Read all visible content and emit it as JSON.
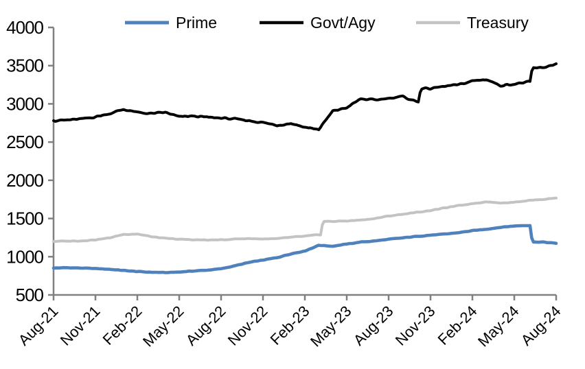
{
  "chart": {
    "background_color": "#ffffff",
    "axis_color": "#808080",
    "text_color": "#000000",
    "legend": [
      {
        "label": "Prime",
        "color": "#4F81BD"
      },
      {
        "label": "Govt/Agy",
        "color": "#000000"
      },
      {
        "label": "Treasury",
        "color": "#C3C3C3"
      }
    ]
  },
  "chart_data": {
    "type": "line",
    "title": "",
    "xlabel": "",
    "ylabel": "",
    "grid": false,
    "legend_position": "top",
    "ylim": [
      500,
      4000
    ],
    "y_ticks": [
      "500",
      "1000",
      "1500",
      "2000",
      "2500",
      "3000",
      "3500",
      "4000"
    ],
    "x_tick_labels": [
      "Aug-21",
      "Nov-21",
      "Feb-22",
      "May-22",
      "Aug-22",
      "Nov-22",
      "Feb-23",
      "May-23",
      "Aug-23",
      "Nov-23",
      "Feb-24",
      "May-24",
      "Aug-24"
    ],
    "x_monthly": [
      "Aug-21",
      "Sep-21",
      "Oct-21",
      "Nov-21",
      "Dec-21",
      "Jan-22",
      "Feb-22",
      "Mar-22",
      "Apr-22",
      "May-22",
      "Jun-22",
      "Jul-22",
      "Aug-22",
      "Sep-22",
      "Oct-22",
      "Nov-22",
      "Dec-22",
      "Jan-23",
      "Feb-23",
      "Mar-23",
      "Apr-23",
      "May-23",
      "Jun-23",
      "Jul-23",
      "Aug-23",
      "Sep-23",
      "Oct-23",
      "Nov-23",
      "Dec-23",
      "Jan-24",
      "Feb-24",
      "Mar-24",
      "Apr-24",
      "May-24",
      "Jun-24",
      "Jul-24",
      "Aug-24"
    ],
    "series": [
      {
        "name": "Prime",
        "color": "#4F81BD",
        "values": [
          852,
          856,
          851,
          845,
          836,
          820,
          806,
          797,
          792,
          800,
          813,
          824,
          842,
          882,
          925,
          956,
          988,
          1038,
          1075,
          1150,
          1138,
          1165,
          1192,
          1206,
          1228,
          1246,
          1266,
          1282,
          1295,
          1315,
          1340,
          1360,
          1385,
          1402,
          1410,
          1192,
          1175
        ],
        "abrupt_shift_after": [
          "Jun-24"
        ]
      },
      {
        "name": "Govt/Agy",
        "color": "#000000",
        "values": [
          2780,
          2788,
          2802,
          2830,
          2872,
          2928,
          2888,
          2872,
          2888,
          2830,
          2840,
          2824,
          2815,
          2800,
          2780,
          2755,
          2720,
          2745,
          2695,
          2665,
          2905,
          2950,
          3065,
          3050,
          3075,
          3095,
          3030,
          3200,
          3230,
          3248,
          3300,
          3320,
          3240,
          3260,
          3285,
          3470,
          3525
        ],
        "abrupt_shift_after": [
          "Oct-23",
          "Jun-24"
        ]
      },
      {
        "name": "Treasury",
        "color": "#C3C3C3",
        "values": [
          1200,
          1205,
          1208,
          1222,
          1246,
          1292,
          1298,
          1262,
          1240,
          1228,
          1222,
          1218,
          1220,
          1232,
          1238,
          1232,
          1235,
          1255,
          1268,
          1288,
          1462,
          1468,
          1480,
          1500,
          1532,
          1556,
          1580,
          1605,
          1638,
          1668,
          1695,
          1720,
          1702,
          1715,
          1735,
          1750,
          1768
        ],
        "abrupt_shift_after": [
          "Mar-23"
        ]
      }
    ]
  }
}
